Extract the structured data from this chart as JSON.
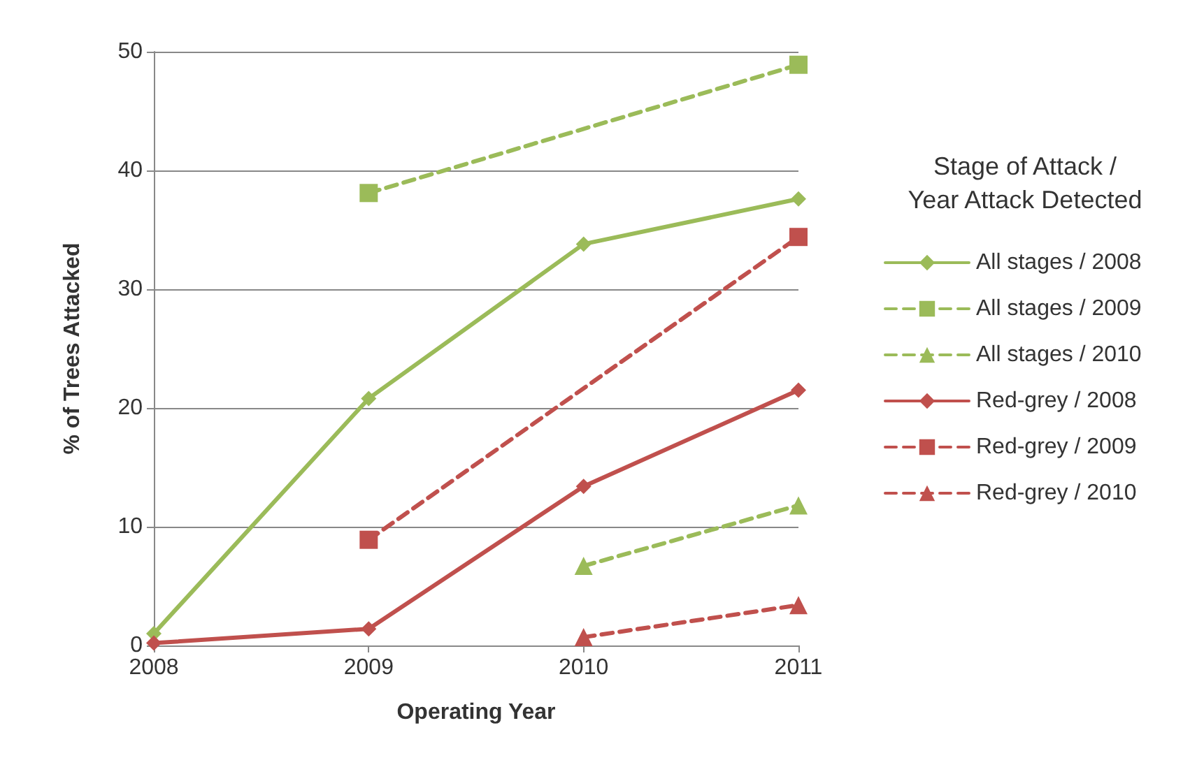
{
  "chart_data": {
    "type": "line",
    "xlabel": "Operating Year",
    "ylabel": "% of Trees Attacked",
    "legend_title": "Stage of Attack /\nYear Attack Detected",
    "legend": "right",
    "grid": "y",
    "xlim": [
      2008,
      2011
    ],
    "xticks": [
      2008,
      2009,
      2010,
      2011
    ],
    "ylim": [
      0,
      50
    ],
    "yticks": [
      0,
      10,
      20,
      30,
      40,
      50
    ],
    "series": [
      {
        "name": "All stages / 2008",
        "color": "#9bbb59",
        "marker": "diamond",
        "line_style": "solid",
        "x": [
          2008,
          2009,
          2010,
          2011
        ],
        "values": [
          1.0,
          20.8,
          33.8,
          37.6
        ]
      },
      {
        "name": "All stages / 2009",
        "color": "#9bbb59",
        "marker": "square",
        "line_style": "dashed",
        "x": [
          2009,
          2011
        ],
        "values": [
          38.1,
          48.9
        ]
      },
      {
        "name": "All stages / 2010",
        "color": "#9bbb59",
        "marker": "triangle",
        "line_style": "dashed",
        "x": [
          2010,
          2011
        ],
        "values": [
          6.7,
          11.8
        ]
      },
      {
        "name": "Red-grey / 2008",
        "color": "#c0504d",
        "marker": "diamond",
        "line_style": "solid",
        "x": [
          2008,
          2009,
          2010,
          2011
        ],
        "values": [
          0.2,
          1.4,
          13.4,
          21.5
        ]
      },
      {
        "name": "Red-grey / 2009",
        "color": "#c0504d",
        "marker": "square",
        "line_style": "dashed",
        "x": [
          2009,
          2011
        ],
        "values": [
          8.9,
          34.4
        ]
      },
      {
        "name": "Red-grey / 2010",
        "color": "#c0504d",
        "marker": "triangle",
        "line_style": "dashed",
        "x": [
          2010,
          2011
        ],
        "values": [
          0.7,
          3.4
        ]
      }
    ]
  }
}
